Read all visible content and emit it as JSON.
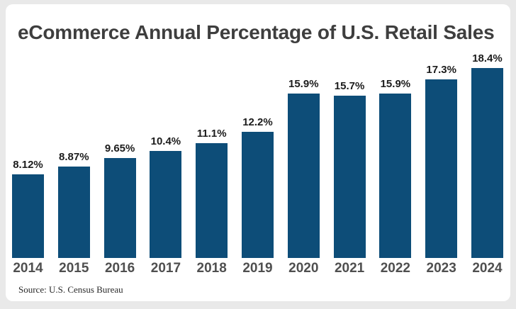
{
  "title": "eCommerce Annual Percentage of U.S. Retail Sales",
  "source": "Source: U.S. Census Bureau",
  "colors": {
    "page_background": "#e9e9e9",
    "card_background": "#ffffff",
    "bar": "#0d4d78",
    "title_text": "#3e3e3e",
    "value_label_text": "#1c1c1c",
    "year_label_text": "#4f4f4f"
  },
  "chart_data": {
    "type": "bar",
    "title": "eCommerce Annual Percentage of U.S. Retail Sales",
    "categories": [
      "2014",
      "2015",
      "2016",
      "2017",
      "2018",
      "2019",
      "2020",
      "2021",
      "2022",
      "2023",
      "2024"
    ],
    "values": [
      8.12,
      8.87,
      9.65,
      10.4,
      11.1,
      12.2,
      15.9,
      15.7,
      15.9,
      17.3,
      18.4
    ],
    "value_labels": [
      "8.12%",
      "8.87%",
      "9.65%",
      "10.4%",
      "11.1%",
      "12.2%",
      "15.9%",
      "15.7%",
      "15.9%",
      "17.3%",
      "18.4%"
    ],
    "xlabel": "",
    "ylabel": "",
    "ylim": [
      0,
      18.4
    ],
    "unit": "percent",
    "grid": false,
    "legend": false,
    "bar_color": "#0d4d78",
    "annotation": "Source: U.S. Census Bureau"
  }
}
